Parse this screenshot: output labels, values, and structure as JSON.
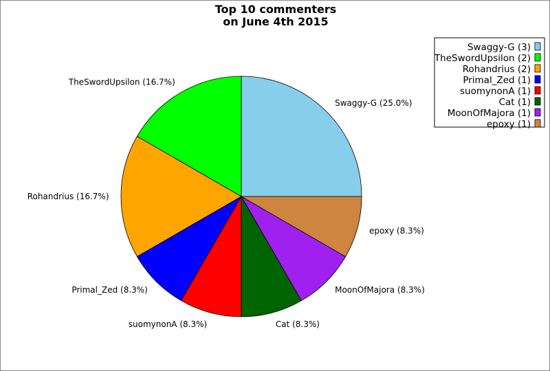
{
  "chart_data": {
    "type": "pie",
    "title_lines": [
      "Top 10 commenters",
      "on June 4th 2015"
    ],
    "start_angle_deg": 0,
    "direction": "counterclockwise",
    "legend_placement": "top-right",
    "slices": [
      {
        "name": "Swaggy-G",
        "count": 3,
        "percent": 25.0,
        "label": "Swaggy-G (25.0%)",
        "legend": "Swaggy-G (3)",
        "color": "#87CEEB"
      },
      {
        "name": "TheSwordUpsilon",
        "count": 2,
        "percent": 16.7,
        "label": "TheSwordUpsilon (16.7%)",
        "legend": "TheSwordUpsilon (2)",
        "color": "#00FF00"
      },
      {
        "name": "Rohandrius",
        "count": 2,
        "percent": 16.7,
        "label": "Rohandrius (16.7%)",
        "legend": "Rohandrius (2)",
        "color": "#FFA500"
      },
      {
        "name": "Primal_Zed",
        "count": 1,
        "percent": 8.3,
        "label": "Primal_Zed (8.3%)",
        "legend": "Primal_Zed (1)",
        "color": "#0000FF"
      },
      {
        "name": "suomynonA",
        "count": 1,
        "percent": 8.3,
        "label": "suomynonA (8.3%)",
        "legend": "suomynonA (1)",
        "color": "#FF0000"
      },
      {
        "name": "Cat",
        "count": 1,
        "percent": 8.3,
        "label": "Cat (8.3%)",
        "legend": "Cat (1)",
        "color": "#006400"
      },
      {
        "name": "MoonOfMajora",
        "count": 1,
        "percent": 8.3,
        "label": "MoonOfMajora (8.3%)",
        "legend": "MoonOfMajora (1)",
        "color": "#A020F0"
      },
      {
        "name": "epoxy",
        "count": 1,
        "percent": 8.3,
        "label": "epoxy (8.3%)",
        "legend": "epoxy (1)",
        "color": "#CD853F"
      }
    ]
  }
}
